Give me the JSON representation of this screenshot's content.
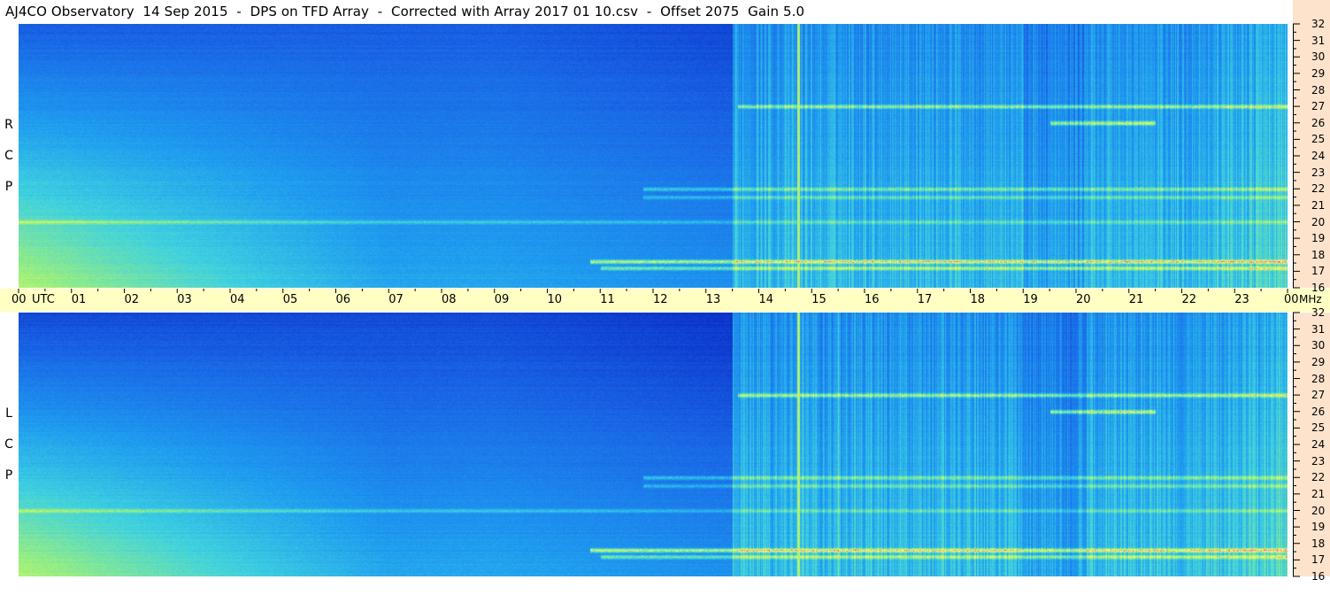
{
  "header": {
    "title": "AJ4CO Observatory  14 Sep 2015  -  DPS on TFD Array  -  Corrected with Array 2017 01 10.csv  -  Offset 2075  Gain 5.0"
  },
  "panels": [
    {
      "id": "rcp",
      "label": [
        "R",
        "C",
        "P"
      ]
    },
    {
      "id": "lcp",
      "label": [
        "L",
        "C",
        "P"
      ]
    }
  ],
  "chart_data": {
    "type": "heatmap",
    "title": "AJ4CO Observatory  14 Sep 2015  -  DPS on TFD Array  -  Corrected with Array 2017 01 10.csv  -  Offset 2075  Gain 5.0",
    "x": {
      "label": "UTC",
      "range": [
        0,
        24
      ],
      "tick_labels": [
        "00",
        "01",
        "02",
        "03",
        "04",
        "05",
        "06",
        "07",
        "08",
        "09",
        "10",
        "11",
        "12",
        "13",
        "14",
        "15",
        "16",
        "17",
        "18",
        "19",
        "20",
        "21",
        "22",
        "23",
        "00"
      ]
    },
    "y": {
      "label": "MHz",
      "range": [
        16,
        32
      ],
      "tick_labels": [
        "32",
        "31",
        "30",
        "29",
        "28",
        "27",
        "26",
        "25",
        "24",
        "23",
        "22",
        "21",
        "20",
        "19",
        "18",
        "17",
        "16"
      ]
    },
    "series": [
      {
        "name": "RCP"
      },
      {
        "name": "LCP"
      }
    ],
    "colormap": [
      "#0a2fc8",
      "#1a66e6",
      "#1e9af0",
      "#3fd2e0",
      "#9ef07a",
      "#ffff60",
      "#ff40c0",
      "#ffffff"
    ],
    "notable_features": [
      {
        "utc_range": [
          13.5,
          24
        ],
        "mhz": 27.0,
        "note": "strong interference band"
      },
      {
        "utc_range": [
          19.0,
          21.5
        ],
        "mhz": 26.5,
        "note": "intense burst region"
      },
      {
        "utc_range": [
          14.7,
          14.8
        ],
        "mhz_range": [
          16,
          32
        ],
        "note": "vertical green line"
      },
      {
        "utc_range": [
          11.0,
          24
        ],
        "mhz": 17.5,
        "note": "broad bright band"
      }
    ]
  }
}
